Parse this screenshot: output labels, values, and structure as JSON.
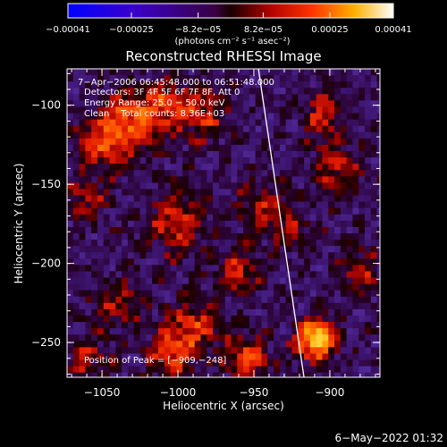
{
  "chart_data": {
    "type": "heatmap",
    "title": "Reconstructed RHESSI Image",
    "xlabel": "Heliocentric X (arcsec)",
    "ylabel": "Heliocentric Y (arcsec)",
    "xlim": [
      -1073,
      -867
    ],
    "ylim": [
      -272,
      -77
    ],
    "x_ticks": [
      {
        "v": -1050,
        "label": "−1050"
      },
      {
        "v": -1000,
        "label": "−1000"
      },
      {
        "v": -950,
        "label": "−950"
      },
      {
        "v": -900,
        "label": "−900"
      }
    ],
    "y_ticks": [
      {
        "v": -100,
        "label": "−100"
      },
      {
        "v": -150,
        "label": "−150"
      },
      {
        "v": -200,
        "label": "−200"
      },
      {
        "v": -250,
        "label": "−250"
      }
    ],
    "colorbar": {
      "range": [
        -0.00041,
        0.00041
      ],
      "ticks": [
        {
          "v": -0.00041,
          "label": "−0.00041"
        },
        {
          "v": -0.00025,
          "label": "−0.00025"
        },
        {
          "v": -8.2e-05,
          "label": "−8.2e−05"
        },
        {
          "v": 8.2e-05,
          "label": "8.2e−05"
        },
        {
          "v": 0.00025,
          "label": "0.00025"
        },
        {
          "v": 0.00041,
          "label": "0.00041"
        }
      ],
      "unit_label": "(photons cm⁻² s⁻¹ asec⁻²)"
    },
    "colormap": "blue-purple-red-yellow-white",
    "peak": [
      -909,
      -248
    ],
    "limb_line": [
      [
        -947,
        -77
      ],
      [
        -917,
        -272
      ]
    ],
    "annotations": [
      "7−Apr−2006 06:45:48.000 to 06:51:48.000",
      "Detectors: 3F 4F 5F 6F 7F 8F, Att 0",
      "Energy Range: 25.0 − 50.0 keV",
      "Clean    Total counts: 8.36E+03"
    ],
    "peak_text": "Position of Peak = [−909,−248]"
  },
  "footer_timestamp": "6−May−2022 01:32"
}
